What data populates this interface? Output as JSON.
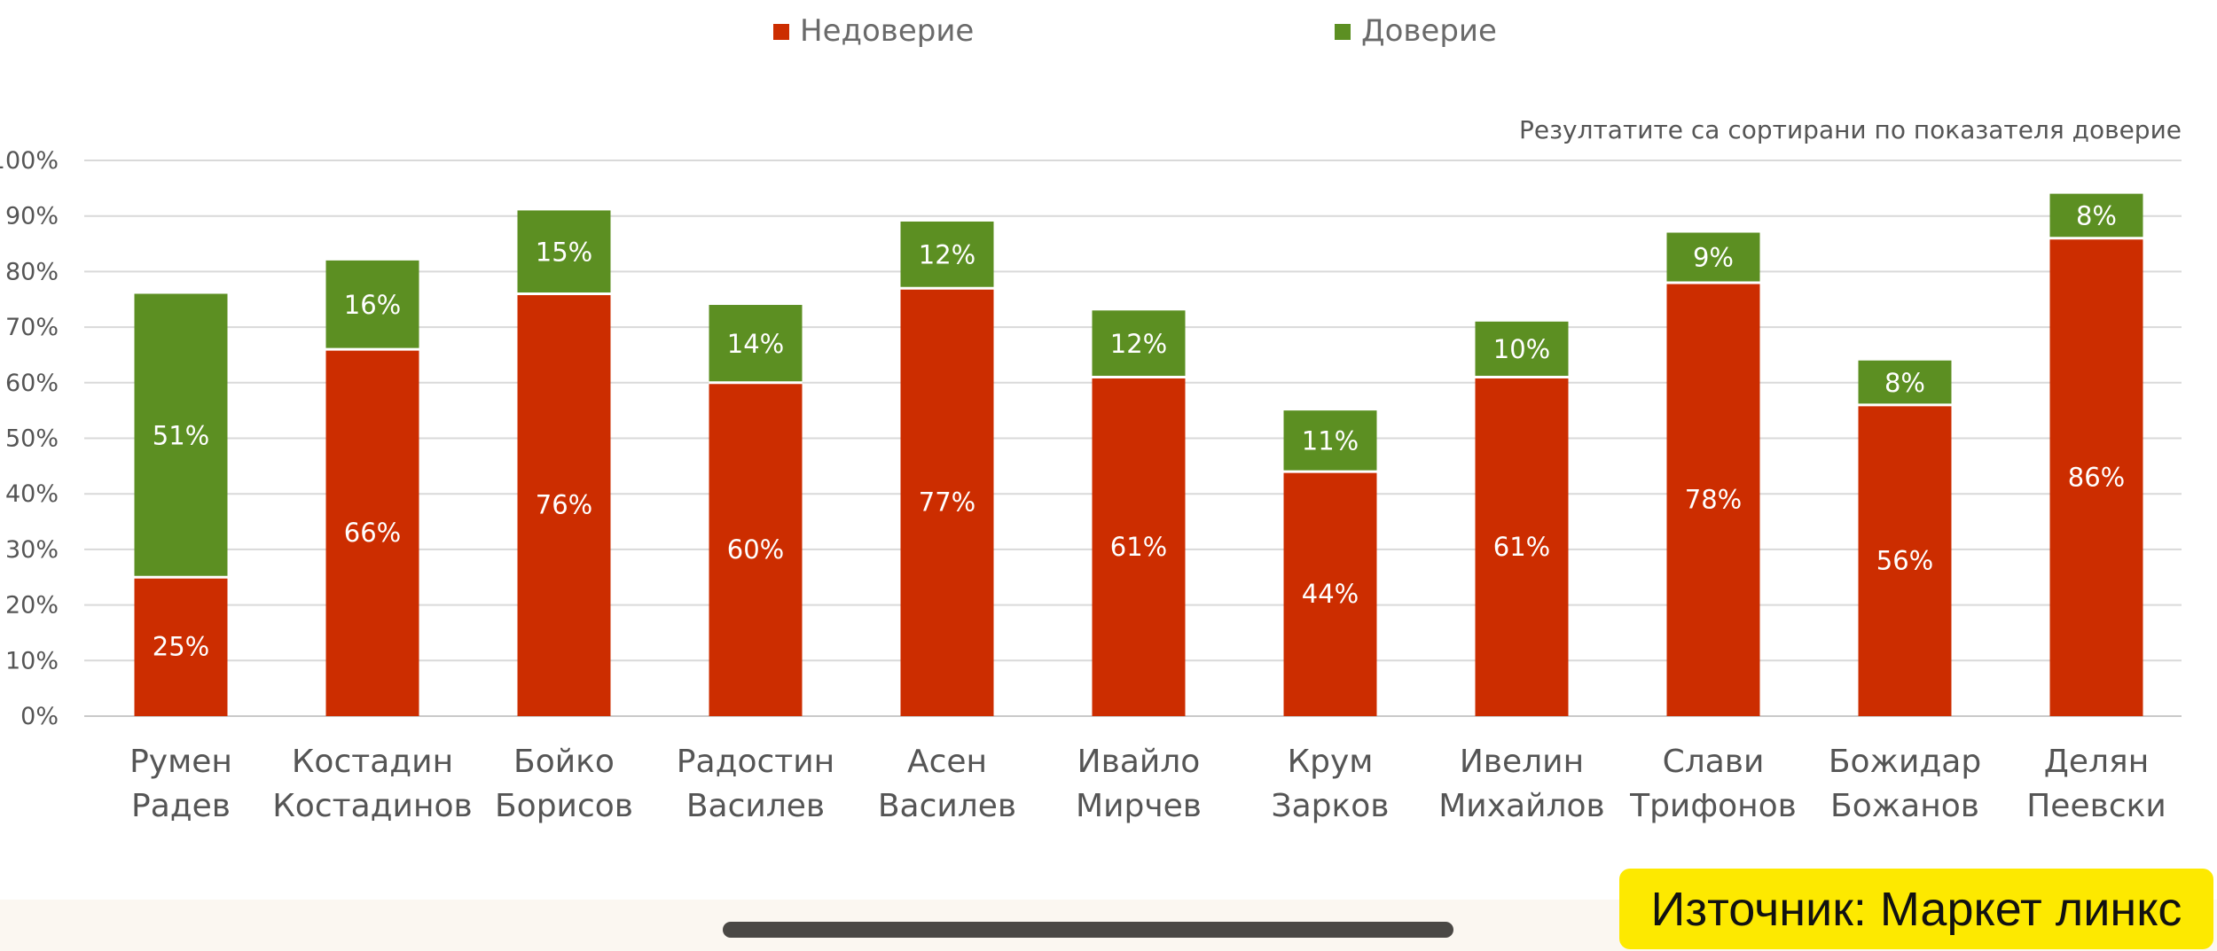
{
  "chart_data": {
    "type": "bar",
    "stacked": true,
    "note": "Резултатите са сортирани по показателя доверие",
    "categories": [
      [
        "Румен",
        "Радев"
      ],
      [
        "Костадин",
        "Костадинов"
      ],
      [
        "Бойко",
        "Борисов"
      ],
      [
        "Радостин",
        "Василев"
      ],
      [
        "Асен",
        "Василев"
      ],
      [
        "Ивайло",
        "Мирчев"
      ],
      [
        "Крум",
        "Зарков"
      ],
      [
        "Ивелин",
        "Михайлов"
      ],
      [
        "Слави",
        "Трифонов"
      ],
      [
        "Божидар",
        "Божанов"
      ],
      [
        "Делян",
        "Пеевски"
      ]
    ],
    "series": [
      {
        "name": "Недоверие",
        "color": "#cc2d00",
        "values": [
          25,
          66,
          76,
          60,
          77,
          61,
          44,
          61,
          78,
          56,
          86
        ]
      },
      {
        "name": "Доверие",
        "color": "#5c8f22",
        "values": [
          51,
          16,
          15,
          14,
          12,
          12,
          11,
          10,
          9,
          8,
          8
        ]
      }
    ],
    "value_suffix": "%",
    "ylim": [
      0,
      100
    ],
    "yticks": [
      "0%",
      "10%",
      "20%",
      "30%",
      "40%",
      "50%",
      "60%",
      "70%",
      "80%",
      "90%",
      "100%"
    ],
    "grid": true,
    "legend_position": "top"
  },
  "source_label": "Източник: Маркет линкс"
}
